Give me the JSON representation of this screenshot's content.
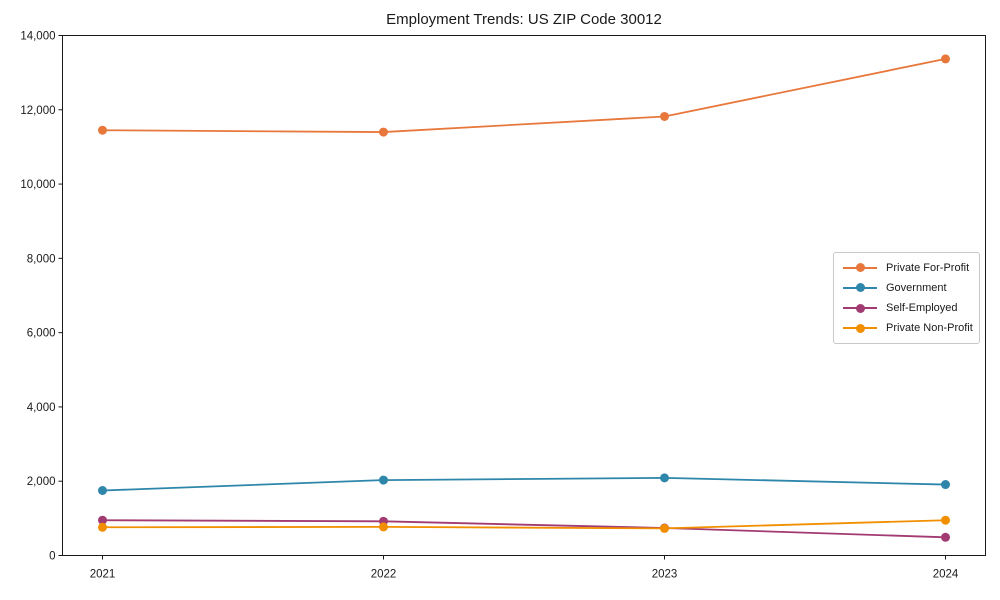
{
  "chart_data": {
    "type": "line",
    "title": "Employment Trends: US ZIP Code 30012",
    "categories": [
      "2021",
      "2022",
      "2023",
      "2024"
    ],
    "series": [
      {
        "name": "Private For-Profit",
        "color": "#E8773C",
        "values": [
          11450,
          11400,
          11820,
          13370
        ]
      },
      {
        "name": "Government",
        "color": "#2E86AB",
        "values": [
          1750,
          2030,
          2090,
          1910
        ]
      },
      {
        "name": "Self-Employed",
        "color": "#A23B72",
        "values": [
          950,
          920,
          740,
          490
        ]
      },
      {
        "name": "Private Non-Profit",
        "color": "#F18F01",
        "values": [
          760,
          770,
          730,
          950
        ]
      }
    ],
    "xlabel": "",
    "ylabel": "",
    "ylim": [
      0,
      14000
    ],
    "ytick_step": 2000,
    "ytick_labels": [
      "0",
      "2,000",
      "4,000",
      "6,000",
      "8,000",
      "10,000",
      "12,000",
      "14,000"
    ],
    "grid": false,
    "legend_position": "center-right",
    "marker": "circle",
    "axis_color": "#1a1a1a",
    "text_color": "#1a1a1a",
    "background_color": "#ffffff"
  }
}
